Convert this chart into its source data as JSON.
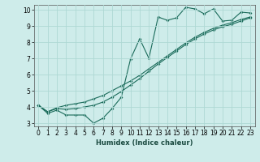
{
  "xlabel": "Humidex (Indice chaleur)",
  "ylabel": "",
  "background_color": "#ceecea",
  "grid_color": "#aed8d4",
  "line_color": "#1a6b5a",
  "xlim": [
    -0.5,
    23.5
  ],
  "ylim": [
    2.8,
    10.3
  ],
  "yticks": [
    3,
    4,
    5,
    6,
    7,
    8,
    9,
    10
  ],
  "xticks": [
    0,
    1,
    2,
    3,
    4,
    5,
    6,
    7,
    8,
    9,
    10,
    11,
    12,
    13,
    14,
    15,
    16,
    17,
    18,
    19,
    20,
    21,
    22,
    23
  ],
  "line1_x": [
    0,
    1,
    2,
    3,
    4,
    5,
    6,
    7,
    8,
    9,
    10,
    11,
    12,
    13,
    14,
    15,
    16,
    17,
    18,
    19,
    20,
    21,
    22,
    23
  ],
  "line1_y": [
    4.1,
    3.6,
    3.8,
    3.5,
    3.5,
    3.5,
    3.0,
    3.3,
    3.9,
    4.6,
    6.95,
    8.2,
    7.0,
    9.55,
    9.35,
    9.5,
    10.15,
    10.05,
    9.75,
    10.05,
    9.3,
    9.35,
    9.85,
    9.8
  ],
  "line2_x": [
    0,
    1,
    2,
    3,
    4,
    5,
    6,
    7,
    8,
    9,
    10,
    11,
    12,
    13,
    14,
    15,
    16,
    17,
    18,
    19,
    20,
    21,
    22,
    23
  ],
  "line2_y": [
    4.1,
    3.7,
    3.95,
    4.1,
    4.2,
    4.3,
    4.5,
    4.7,
    5.0,
    5.3,
    5.6,
    5.95,
    6.35,
    6.75,
    7.15,
    7.55,
    7.95,
    8.3,
    8.6,
    8.85,
    9.05,
    9.2,
    9.4,
    9.55
  ],
  "line3_x": [
    0,
    1,
    2,
    3,
    4,
    5,
    6,
    7,
    8,
    9,
    10,
    11,
    12,
    13,
    14,
    15,
    16,
    17,
    18,
    19,
    20,
    21,
    22,
    23
  ],
  "line3_y": [
    4.1,
    3.7,
    3.9,
    3.85,
    3.9,
    4.0,
    4.1,
    4.3,
    4.6,
    4.95,
    5.35,
    5.75,
    6.2,
    6.65,
    7.05,
    7.45,
    7.85,
    8.2,
    8.5,
    8.75,
    8.95,
    9.1,
    9.3,
    9.5
  ],
  "tick_fontsize": 5.5,
  "xlabel_fontsize": 6.0,
  "marker_size": 2.0,
  "line_width": 0.8
}
